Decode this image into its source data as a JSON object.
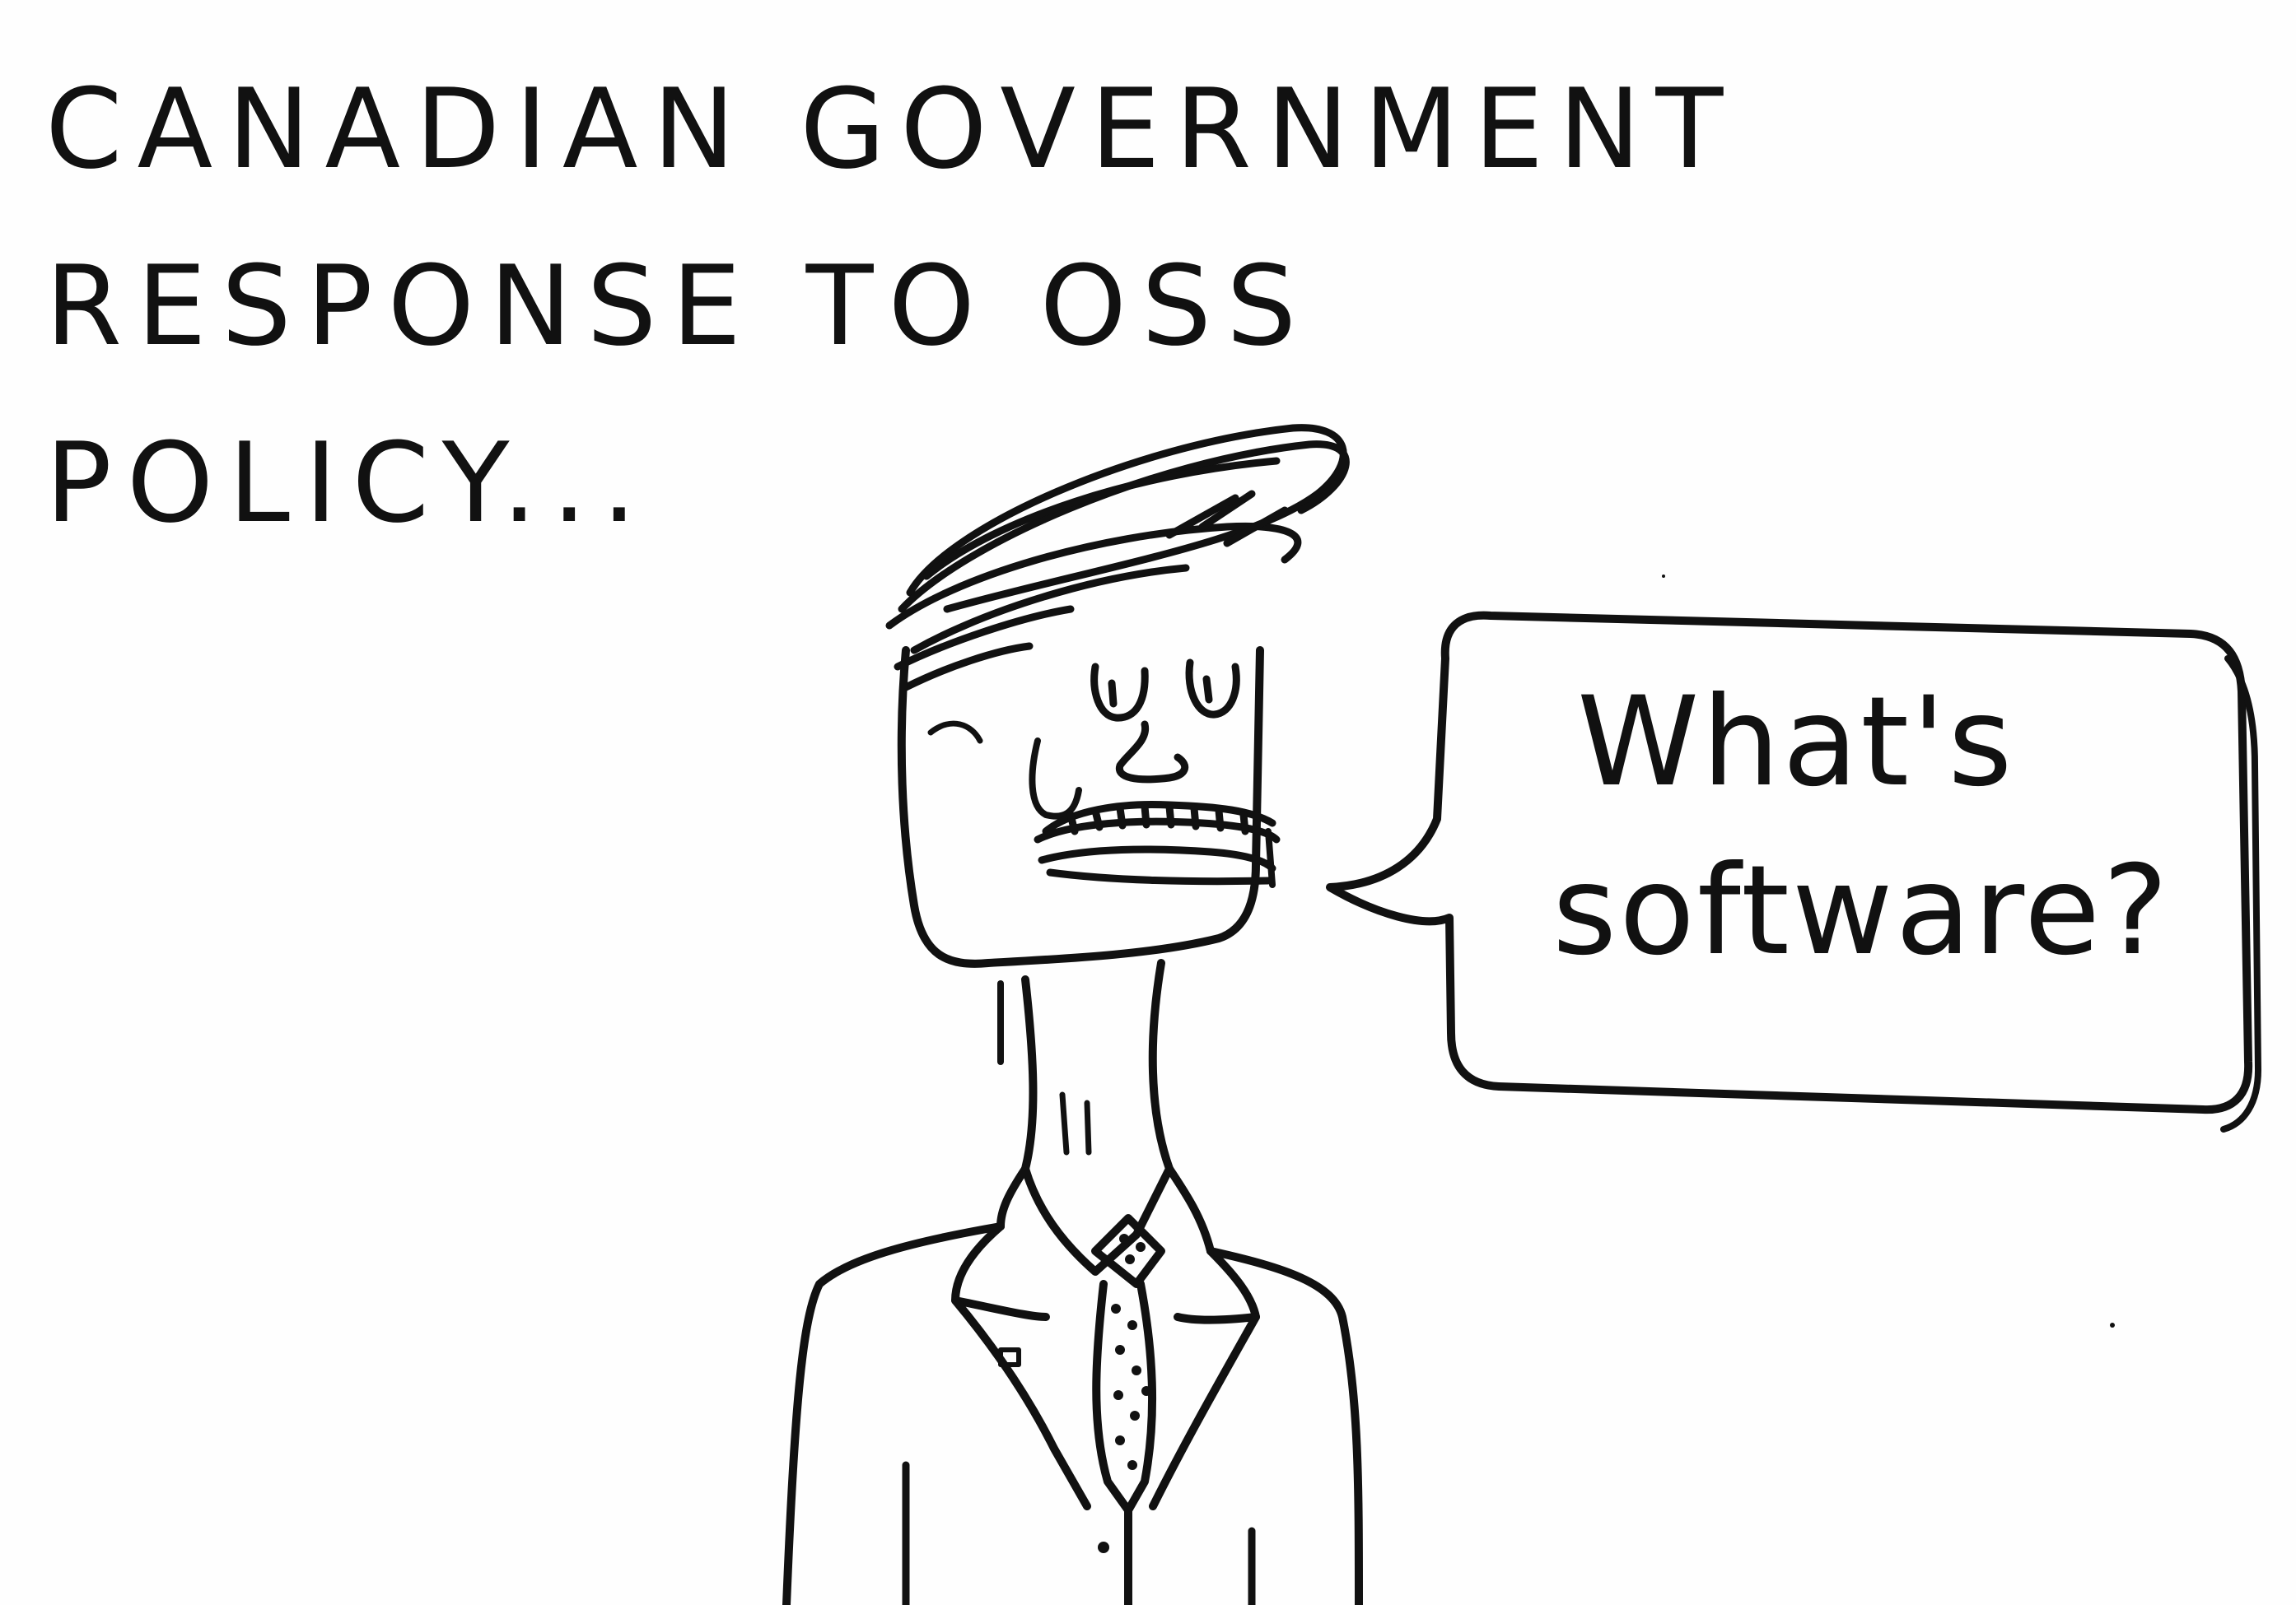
{
  "caption": {
    "line1": "CANADIAN GOVERNMENT",
    "line2": "RESPONSE TO OSS",
    "line3": "POLICY..."
  },
  "speech": {
    "line1": "What's",
    "line2": "software?"
  },
  "ink_color": "#111111",
  "paper_color": "#fefefe"
}
